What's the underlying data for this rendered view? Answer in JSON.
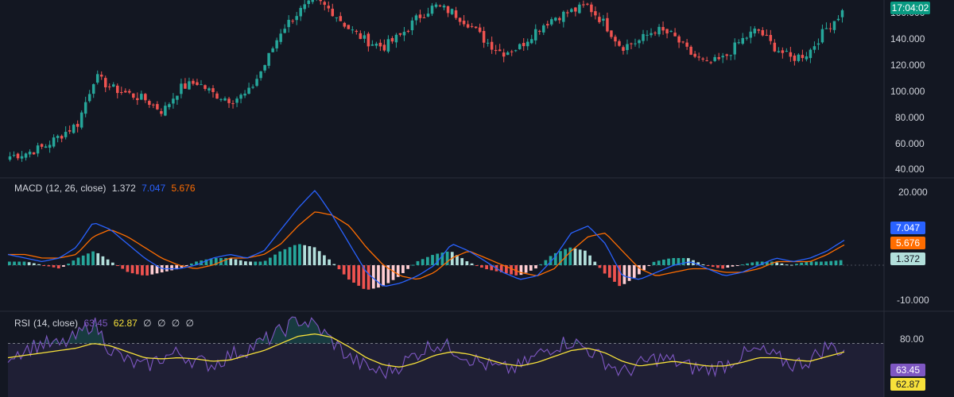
{
  "price_panel": {
    "y_ticks": [
      "160.000",
      "140.000",
      "120.000",
      "100.000",
      "80.000",
      "60.000",
      "40.000"
    ],
    "countdown_badge": "17:04:02",
    "colors": {
      "up": "#26a69a",
      "down": "#ef5350",
      "badge": "#089981"
    }
  },
  "macd_panel": {
    "name": "MACD",
    "params": "(12, 26, close)",
    "value_hist": "1.372",
    "value_macd": "7.047",
    "value_signal": "5.676",
    "y_ticks": [
      "20.000",
      "-10.000"
    ],
    "badges": [
      "7.047",
      "5.676",
      "1.372"
    ],
    "colors": {
      "macd": "#2962ff",
      "signal": "#ff6d00",
      "hist_up": "#26a69a",
      "hist_down": "#ef5350",
      "hist_badge_bg": "#b2dfdb"
    }
  },
  "rsi_panel": {
    "name": "RSI",
    "params": "(14, close)",
    "value_rsi": "63.45",
    "value_ma": "62.87",
    "extra_values": [
      "∅",
      "∅",
      "∅",
      "∅"
    ],
    "y_ticks": [
      "80.00"
    ],
    "badges": [
      "63.45",
      "62.87"
    ],
    "colors": {
      "rsi": "#7e57c2",
      "ma": "#f7e13a",
      "band": "#7e57c2"
    }
  },
  "chart_data": [
    {
      "type": "candlestick",
      "y_axis_ticks": [
        40,
        60,
        80,
        100,
        120,
        140,
        160
      ],
      "ylim": [
        35,
        185
      ],
      "close_trend": [
        52,
        55,
        60,
        70,
        80,
        120,
        110,
        105,
        100,
        90,
        110,
        115,
        105,
        100,
        105,
        130,
        160,
        175,
        185,
        175,
        160,
        150,
        145,
        155,
        170,
        180,
        175,
        165,
        150,
        140,
        145,
        160,
        170,
        175,
        180,
        165,
        145,
        150,
        160,
        155,
        140,
        130,
        135,
        150,
        160,
        145,
        135,
        140,
        160,
        175
      ]
    },
    {
      "type": "line",
      "title": "MACD (12, 26, close)",
      "y_axis_ticks": [
        20,
        -10
      ],
      "ylim": [
        -12,
        24
      ],
      "series": [
        {
          "name": "MACD",
          "values": [
            3,
            2,
            1,
            2,
            5,
            12,
            10,
            6,
            2,
            -1,
            -1,
            0,
            2,
            3,
            2,
            4,
            10,
            16,
            21,
            14,
            6,
            -2,
            -6,
            -5,
            -3,
            0,
            6,
            4,
            1,
            -2,
            -4,
            -3,
            2,
            9,
            11,
            6,
            -3,
            -4,
            -2,
            0,
            1,
            -1,
            -3,
            -2,
            0,
            2,
            1,
            2,
            4,
            7
          ]
        },
        {
          "name": "Signal",
          "values": [
            3,
            3,
            2,
            2,
            3,
            8,
            10,
            8,
            5,
            2,
            0,
            -1,
            0,
            2,
            2,
            3,
            6,
            11,
            15,
            14,
            11,
            5,
            0,
            -3,
            -4,
            -2,
            2,
            4,
            2,
            0,
            -2,
            -3,
            -1,
            4,
            8,
            9,
            4,
            -1,
            -3,
            -2,
            -1,
            -1,
            -2,
            -2,
            -1,
            1,
            1,
            1,
            3,
            5.7
          ]
        },
        {
          "name": "Histogram",
          "values": [
            1,
            1,
            0,
            -1,
            2,
            4,
            1,
            -2,
            -3,
            -2,
            -1,
            1,
            2,
            2,
            1,
            1,
            4,
            6,
            5,
            1,
            -4,
            -7,
            -6,
            -3,
            1,
            3,
            4,
            1,
            -1,
            -2,
            -3,
            -1,
            3,
            5,
            4,
            -2,
            -6,
            -3,
            1,
            2,
            2,
            0,
            -1,
            0,
            1,
            1,
            0,
            1,
            1,
            1.4
          ]
        }
      ]
    },
    {
      "type": "line",
      "title": "RSI (14, close)",
      "y_axis_ticks": [
        80
      ],
      "ylim": [
        25,
        95
      ],
      "overbought": 70,
      "series": [
        {
          "name": "RSI",
          "values": [
            60,
            65,
            70,
            68,
            75,
            88,
            65,
            55,
            50,
            58,
            62,
            55,
            52,
            60,
            65,
            72,
            80,
            90,
            85,
            72,
            58,
            50,
            45,
            52,
            62,
            70,
            66,
            58,
            52,
            48,
            50,
            60,
            68,
            72,
            65,
            55,
            45,
            52,
            58,
            55,
            50,
            48,
            52,
            60,
            64,
            58,
            52,
            56,
            68,
            63.45
          ]
        },
        {
          "name": "MA",
          "values": [
            58,
            60,
            62,
            64,
            66,
            70,
            68,
            63,
            58,
            57,
            58,
            57,
            55,
            56,
            60,
            64,
            70,
            76,
            78,
            75,
            67,
            58,
            52,
            50,
            54,
            60,
            63,
            61,
            57,
            53,
            51,
            54,
            59,
            64,
            66,
            62,
            55,
            51,
            53,
            55,
            53,
            51,
            51,
            54,
            58,
            58,
            56,
            55,
            59,
            62.87
          ]
        }
      ]
    }
  ]
}
